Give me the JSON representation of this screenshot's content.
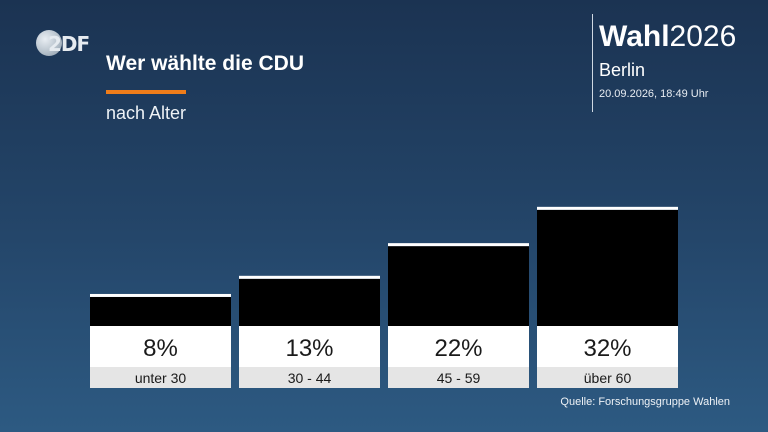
{
  "header": {
    "logo_text": "2DF",
    "title": "Wer wählte die CDU",
    "subtitle": "nach Alter"
  },
  "brand": {
    "wahl": "Wahl",
    "year": "2026",
    "city": "Berlin",
    "datetime": "20.09.2026, 18:49 Uhr"
  },
  "colors": {
    "bar": "#000000",
    "bar_top_line": "#ffffff",
    "value_box": "#ffffff",
    "category_box": "#e5e5e5",
    "accent": "#ef7d1a"
  },
  "chart_data": {
    "type": "bar",
    "categories": [
      "unter 30",
      "30 - 44",
      "45 - 59",
      "über 60"
    ],
    "values": [
      8,
      13,
      22,
      32
    ],
    "value_labels": [
      "8%",
      "13%",
      "22%",
      "32%"
    ],
    "title": "Wer wählte die CDU",
    "subtitle": "nach Alter",
    "xlabel": "",
    "ylabel": "",
    "grid": false,
    "legend": "none"
  },
  "footer": {
    "source": "Quelle: Forschungsgruppe Wahlen"
  }
}
